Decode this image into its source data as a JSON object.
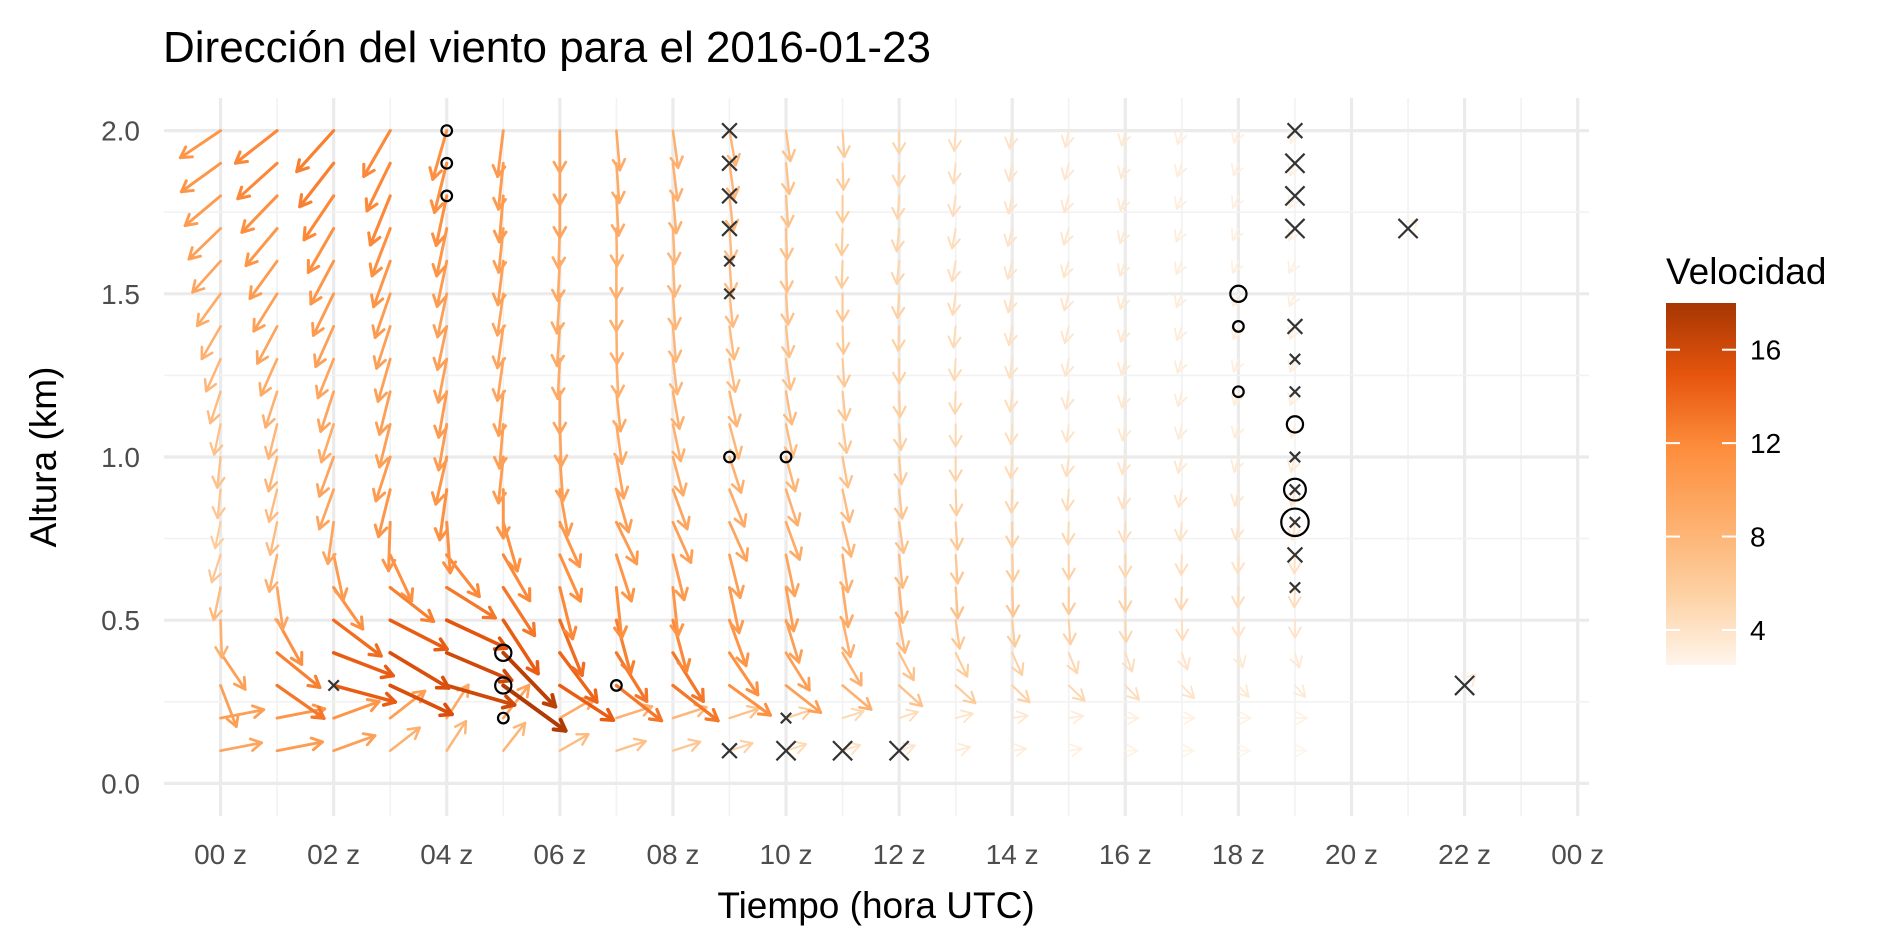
{
  "chart_data": {
    "type": "vector_field",
    "title": "Dirección del viento para el 2016-01-23",
    "xlabel": "Tiempo (hora UTC)",
    "ylabel": "Altura (km)",
    "x_ticks": [
      "00 z",
      "02 z",
      "04 z",
      "06 z",
      "08 z",
      "10 z",
      "12 z",
      "14 z",
      "16 z",
      "18 z",
      "20 z",
      "22 z",
      "00 z"
    ],
    "x_tick_hours": [
      0,
      2,
      4,
      6,
      8,
      10,
      12,
      14,
      16,
      18,
      20,
      22,
      24
    ],
    "y_ticks": [
      "0.0",
      "0.5",
      "1.0",
      "1.5",
      "2.0"
    ],
    "y_tick_values": [
      0,
      0.5,
      1.0,
      1.5,
      2.0
    ],
    "xlim": [
      -1,
      24.2
    ],
    "ylim": [
      -0.1,
      2.1
    ],
    "grid": true,
    "legend": {
      "title": "Velocidad",
      "labels": [
        "4",
        "8",
        "12",
        "16"
      ],
      "values": [
        4,
        8,
        12,
        16
      ],
      "range": [
        2.5,
        18
      ],
      "position": "right",
      "colors": [
        "#fff5eb",
        "#fdd0a2",
        "#fdae6b",
        "#fd8d3c",
        "#e6550d",
        "#a63603"
      ]
    },
    "field": {
      "hours": [
        0,
        1,
        2,
        3,
        4,
        5,
        6,
        7,
        8,
        9,
        10,
        11,
        12,
        13,
        14,
        15,
        16,
        17,
        18,
        19
      ],
      "heights_km": [
        0.1,
        0.2,
        0.3,
        0.4,
        0.5,
        0.6,
        0.7,
        0.8,
        0.9,
        1.0,
        1.1,
        1.2,
        1.3,
        1.4,
        1.5,
        1.6,
        1.7,
        1.8,
        1.9,
        2.0
      ],
      "direction_deg": [
        [
          11,
          11,
          20,
          38,
          57,
          52,
          30,
          18,
          18,
          18,
          18,
          18,
          18,
          15,
          9,
          9,
          0,
          0,
          0,
          0
        ],
        [
          11,
          11,
          20,
          38,
          57,
          52,
          30,
          18,
          18,
          18,
          18,
          18,
          18,
          15,
          9,
          9,
          0,
          0,
          0,
          0
        ],
        [
          -69,
          -35,
          -15,
          -25,
          -16,
          -36,
          -33,
          -38,
          -38,
          -36,
          -38,
          -40,
          -42,
          -42,
          -44,
          -44,
          -46,
          -46,
          -48,
          -48
        ],
        [
          -56,
          -39,
          -21,
          -31,
          -23,
          -46,
          -53,
          -58,
          -58,
          -56,
          -58,
          -60,
          -62,
          -64,
          -66,
          -68,
          -70,
          -72,
          -74,
          -74
        ],
        [
          -88,
          -61,
          -37,
          -27,
          -25,
          -57,
          -68,
          -75,
          -75,
          -70,
          -73,
          -78,
          -80,
          -82,
          -84,
          -86,
          -88,
          -88,
          -90,
          -90
        ],
        [
          -102,
          -82,
          -55,
          -38,
          -32,
          -57,
          -76,
          -84,
          -84,
          -78,
          -80,
          -82,
          -84,
          -86,
          -88,
          -90,
          -90,
          -92,
          -92,
          -92
        ],
        [
          -108,
          -102,
          -78,
          -65,
          -52,
          -60,
          -66,
          -72,
          -76,
          -76,
          -78,
          -82,
          -84,
          -86,
          -88,
          -90,
          -90,
          -92,
          -92,
          -92
        ],
        [
          -102,
          -102,
          -98,
          -92,
          -86,
          -74,
          -66,
          -64,
          -66,
          -66,
          -70,
          -76,
          -82,
          -86,
          -90,
          -92,
          -94,
          -96,
          -98,
          -98
        ],
        [
          -96,
          -104,
          -110,
          -104,
          -98,
          -90,
          -80,
          -74,
          -70,
          -68,
          -72,
          -78,
          -84,
          -88,
          -92,
          -95,
          -98,
          -100,
          -102,
          -102
        ],
        [
          -96,
          -104,
          -110,
          -108,
          -103,
          -96,
          -86,
          -80,
          -75,
          -72,
          -75,
          -80,
          -85,
          -90,
          -94,
          -97,
          -100,
          -103,
          -105,
          -105
        ],
        [
          -102,
          -104,
          -108,
          -104,
          -100,
          -95,
          -88,
          -82,
          -78,
          -75,
          -78,
          -82,
          -86,
          -90,
          -94,
          -97,
          -100,
          -103,
          -105,
          -105
        ],
        [
          -108,
          -108,
          -108,
          -104,
          -100,
          -96,
          -90,
          -84,
          -80,
          -78,
          -80,
          -84,
          -88,
          -92,
          -96,
          -99,
          -102,
          -105,
          -108,
          -108
        ],
        [
          -114,
          -114,
          -112,
          -106,
          -101,
          -98,
          -93,
          -87,
          -83,
          -80,
          -82,
          -86,
          -90,
          -94,
          -98,
          -101,
          -104,
          -107,
          -110,
          -110
        ],
        [
          -120,
          -118,
          -114,
          -108,
          -102,
          -98,
          -94,
          -89,
          -85,
          -82,
          -84,
          -88,
          -92,
          -96,
          -100,
          -103,
          -106,
          -109,
          -112,
          -112
        ],
        [
          -126,
          -122,
          -116,
          -109,
          -102,
          -98,
          -94,
          -90,
          -86,
          -84,
          -86,
          -90,
          -94,
          -98,
          -102,
          -105,
          -108,
          -111,
          -114,
          -114
        ],
        [
          -132,
          -126,
          -118,
          -110,
          -102,
          -97,
          -93,
          -90,
          -87,
          -86,
          -88,
          -92,
          -96,
          -100,
          -104,
          -107,
          -110,
          -113,
          -116,
          -116
        ],
        [
          -136,
          -130,
          -120,
          -111,
          -102,
          -96,
          -92,
          -89,
          -87,
          -86,
          -88,
          -92,
          -96,
          -100,
          -104,
          -107,
          -110,
          -113,
          -116,
          -116
        ],
        [
          -140,
          -134,
          -124,
          -112,
          -102,
          -95,
          -90,
          -87,
          -85,
          -84,
          -86,
          -90,
          -94,
          -98,
          -102,
          -105,
          -108,
          -111,
          -114,
          -114
        ],
        [
          -144,
          -138,
          -128,
          -116,
          -104,
          -96,
          -90,
          -86,
          -83,
          -82,
          -84,
          -88,
          -92,
          -96,
          -100,
          -103,
          -106,
          -109,
          -112,
          -112
        ],
        [
          -146,
          -142,
          -132,
          -120,
          -106,
          -97,
          -90,
          -85,
          -82,
          -80,
          -82,
          -86,
          -90,
          -94,
          -98,
          -101,
          -104,
          -107,
          -110,
          -110
        ]
      ],
      "speed": [
        [
          9.5,
          10.5,
          10.0,
          8.5,
          8.0,
          8.0,
          7.5,
          7.0,
          6.5,
          5.5,
          4.8,
          4.2,
          3.8,
          3.4,
          3.2,
          3.0,
          2.8,
          2.7,
          2.6,
          2.6
        ],
        [
          10.0,
          11.0,
          11.0,
          10.0,
          9.0,
          9.5,
          9.0,
          8.5,
          8.0,
          7.0,
          6.0,
          5.0,
          4.5,
          4.0,
          3.6,
          3.3,
          3.0,
          2.9,
          2.8,
          2.8
        ],
        [
          10.0,
          13.0,
          14.5,
          15.5,
          16.0,
          17.5,
          14.5,
          13.0,
          13.0,
          11.5,
          10.0,
          8.5,
          7.0,
          6.0,
          5.5,
          5.0,
          4.5,
          4.0,
          3.5,
          3.5
        ],
        [
          10.0,
          12.5,
          14.5,
          15.5,
          16.0,
          17.0,
          14.0,
          13.0,
          13.0,
          11.5,
          10.0,
          8.5,
          7.0,
          6.0,
          5.5,
          5.0,
          4.5,
          4.0,
          3.5,
          3.5
        ],
        [
          8.5,
          11.5,
          13.5,
          14.5,
          15.0,
          14.5,
          13.5,
          12.5,
          12.0,
          11.0,
          10.0,
          8.5,
          7.5,
          6.5,
          6.0,
          5.5,
          5.0,
          4.5,
          4.0,
          4.0
        ],
        [
          7.5,
          9.5,
          11.5,
          12.5,
          13.0,
          13.0,
          12.0,
          11.5,
          11.0,
          10.5,
          10.0,
          9.0,
          8.0,
          7.0,
          6.5,
          6.0,
          5.5,
          5.0,
          4.5,
          4.5
        ],
        [
          6.5,
          8.5,
          10.5,
          11.5,
          12.0,
          12.0,
          11.5,
          11.0,
          10.5,
          10.0,
          9.5,
          8.5,
          7.5,
          6.5,
          6.0,
          5.5,
          5.0,
          4.5,
          4.2,
          4.2
        ],
        [
          6.0,
          7.5,
          9.5,
          11.0,
          11.5,
          11.5,
          11.0,
          10.5,
          10.0,
          9.5,
          9.0,
          8.0,
          7.0,
          6.2,
          5.6,
          5.0,
          4.5,
          4.2,
          4.0,
          4.0
        ],
        [
          6.5,
          7.5,
          9.5,
          11.0,
          11.5,
          11.0,
          10.5,
          10.0,
          9.5,
          9.0,
          8.5,
          7.5,
          6.6,
          5.8,
          5.2,
          4.7,
          4.3,
          4.0,
          3.8,
          3.8
        ],
        [
          7.0,
          8.0,
          9.5,
          10.5,
          11.0,
          10.5,
          10.0,
          9.5,
          9.0,
          8.5,
          8.0,
          7.0,
          6.2,
          5.4,
          4.8,
          4.4,
          4.0,
          3.7,
          3.5,
          3.5
        ],
        [
          7.0,
          8.0,
          9.0,
          10.0,
          10.5,
          10.0,
          9.5,
          9.0,
          8.5,
          8.0,
          7.5,
          6.5,
          5.8,
          5.0,
          4.5,
          4.0,
          3.7,
          3.4,
          3.2,
          3.2
        ],
        [
          7.5,
          8.5,
          9.5,
          10.0,
          10.5,
          10.0,
          9.5,
          9.0,
          8.5,
          8.0,
          7.5,
          6.5,
          5.8,
          5.0,
          4.5,
          4.0,
          3.7,
          3.4,
          3.2,
          3.2
        ],
        [
          8.0,
          9.0,
          9.5,
          10.0,
          10.0,
          9.5,
          9.0,
          8.5,
          8.0,
          7.5,
          7.0,
          6.2,
          5.5,
          4.8,
          4.3,
          3.9,
          3.6,
          3.3,
          3.1,
          3.1
        ],
        [
          8.5,
          9.5,
          10.0,
          10.0,
          10.0,
          9.5,
          9.0,
          8.5,
          8.0,
          7.5,
          7.0,
          6.2,
          5.5,
          4.8,
          4.3,
          3.9,
          3.6,
          3.3,
          3.1,
          3.1
        ],
        [
          9.0,
          10.0,
          10.5,
          10.5,
          10.0,
          9.5,
          9.0,
          8.5,
          8.0,
          7.5,
          7.0,
          6.2,
          5.5,
          4.8,
          4.3,
          3.9,
          3.6,
          3.3,
          3.1,
          3.1
        ],
        [
          9.5,
          10.5,
          11.0,
          11.0,
          10.5,
          10.0,
          9.0,
          8.5,
          8.0,
          7.5,
          7.0,
          6.0,
          5.2,
          4.6,
          4.1,
          3.8,
          3.5,
          3.2,
          3.0,
          3.0
        ],
        [
          10.0,
          11.0,
          11.5,
          11.5,
          11.0,
          10.0,
          9.0,
          8.5,
          8.0,
          7.5,
          7.0,
          6.0,
          5.2,
          4.6,
          4.1,
          3.8,
          3.5,
          3.2,
          3.0,
          3.0
        ],
        [
          10.5,
          11.5,
          12.0,
          12.0,
          11.5,
          10.5,
          9.5,
          9.0,
          8.5,
          8.0,
          7.0,
          6.0,
          5.2,
          4.6,
          4.1,
          3.8,
          3.5,
          3.2,
          3.0,
          3.0
        ],
        [
          11.0,
          12.0,
          12.5,
          12.0,
          11.5,
          10.5,
          9.5,
          9.0,
          8.5,
          8.0,
          7.0,
          6.0,
          5.2,
          4.6,
          4.1,
          3.8,
          3.5,
          3.2,
          3.0,
          3.0
        ],
        [
          11.0,
          12.0,
          12.5,
          12.0,
          11.5,
          10.5,
          9.5,
          9.0,
          8.5,
          8.0,
          7.0,
          6.0,
          5.2,
          4.6,
          4.1,
          3.8,
          3.5,
          3.2,
          3.0,
          3.0
        ]
      ]
    },
    "extra_vectors": [
      {
        "hour": 21,
        "height_km": 1.7,
        "direction_deg": 45,
        "speed": 3.0
      },
      {
        "hour": 22,
        "height_km": 0.3,
        "direction_deg": 45,
        "speed": 3.5
      }
    ],
    "calm_markers": [
      {
        "hour": 9,
        "height_km": 2.0,
        "size": 2
      },
      {
        "hour": 9,
        "height_km": 1.9,
        "size": 2
      },
      {
        "hour": 9,
        "height_km": 1.8,
        "size": 2
      },
      {
        "hour": 9,
        "height_km": 1.7,
        "size": 2
      },
      {
        "hour": 9,
        "height_km": 1.6,
        "size": 1
      },
      {
        "hour": 9,
        "height_km": 1.5,
        "size": 1
      },
      {
        "hour": 9,
        "height_km": 0.1,
        "size": 2
      },
      {
        "hour": 10,
        "height_km": 0.2,
        "size": 1
      },
      {
        "hour": 10,
        "height_km": 0.1,
        "size": 3
      },
      {
        "hour": 11,
        "height_km": 0.1,
        "size": 3
      },
      {
        "hour": 12,
        "height_km": 0.1,
        "size": 3
      },
      {
        "hour": 2,
        "height_km": 0.3,
        "size": 1
      },
      {
        "hour": 19,
        "height_km": 2.0,
        "size": 2
      },
      {
        "hour": 19,
        "height_km": 1.9,
        "size": 3
      },
      {
        "hour": 19,
        "height_km": 1.8,
        "size": 3
      },
      {
        "hour": 19,
        "height_km": 1.7,
        "size": 3
      },
      {
        "hour": 19,
        "height_km": 1.4,
        "size": 2
      },
      {
        "hour": 19,
        "height_km": 1.3,
        "size": 1
      },
      {
        "hour": 19,
        "height_km": 1.2,
        "size": 1
      },
      {
        "hour": 19,
        "height_km": 1.0,
        "size": 1
      },
      {
        "hour": 19,
        "height_km": 0.9,
        "size": 1
      },
      {
        "hour": 19,
        "height_km": 0.8,
        "size": 1
      },
      {
        "hour": 19,
        "height_km": 0.7,
        "size": 2
      },
      {
        "hour": 19,
        "height_km": 0.6,
        "size": 1
      },
      {
        "hour": 21,
        "height_km": 1.7,
        "size": 3
      },
      {
        "hour": 22,
        "height_km": 0.3,
        "size": 3
      }
    ],
    "circle_markers": [
      {
        "hour": 4,
        "height_km": 2.0,
        "size": 1
      },
      {
        "hour": 4,
        "height_km": 1.9,
        "size": 1
      },
      {
        "hour": 4,
        "height_km": 1.8,
        "size": 1
      },
      {
        "hour": 9,
        "height_km": 1.0,
        "size": 1
      },
      {
        "hour": 10,
        "height_km": 1.0,
        "size": 1
      },
      {
        "hour": 5,
        "height_km": 0.4,
        "size": 2
      },
      {
        "hour": 5,
        "height_km": 0.3,
        "size": 2
      },
      {
        "hour": 5,
        "height_km": 0.2,
        "size": 1
      },
      {
        "hour": 7,
        "height_km": 0.3,
        "size": 1
      },
      {
        "hour": 18,
        "height_km": 1.5,
        "size": 2
      },
      {
        "hour": 18,
        "height_km": 1.4,
        "size": 1
      },
      {
        "hour": 18,
        "height_km": 1.2,
        "size": 1
      },
      {
        "hour": 19,
        "height_km": 1.1,
        "size": 2
      },
      {
        "hour": 19,
        "height_km": 0.9,
        "size": 3
      },
      {
        "hour": 19,
        "height_km": 0.8,
        "size": 4
      }
    ]
  }
}
